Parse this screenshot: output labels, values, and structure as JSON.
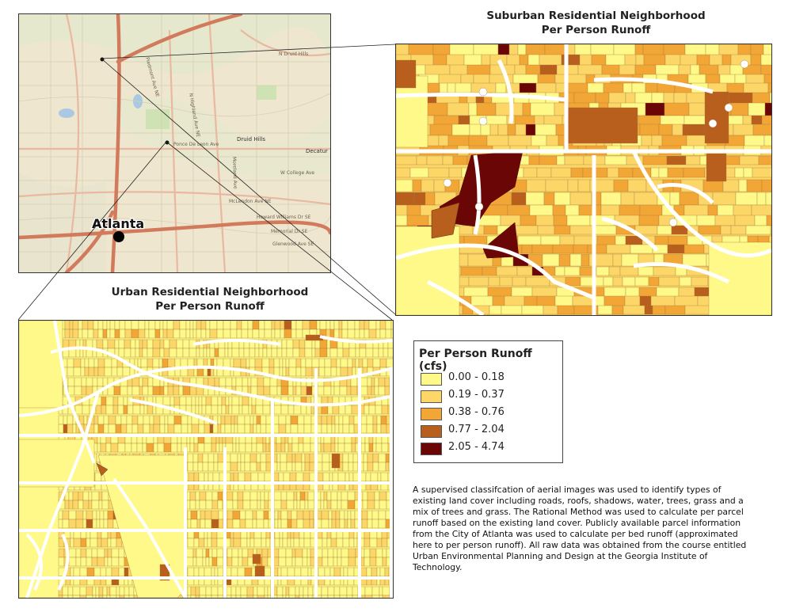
{
  "suburban_title": "Suburban Residential Neighborhood",
  "suburban_subtitle": "Per Person Runoff",
  "urban_title": "Urban Residential Neighborhood",
  "urban_subtitle": "Per Person Runoff",
  "city_label": "Atlanta",
  "map_labels": {
    "druid_hills": "Druid Hills",
    "decatur": "Decatur",
    "n_druid_hills": "N Druid Hills",
    "mclendon": "McLendon Ave NE",
    "williams_dr": "Howard Williams Dr SE",
    "glenwood": "Glenwood Ave SE",
    "memorial": "Memorial Dr SE",
    "ponce": "Ponce De Leon Ave",
    "w_college": "W College Ave",
    "n_highland": "N Highland Ave NE",
    "piedmont": "Piedmont Ave NE",
    "moreland": "Moreland Ave"
  },
  "legend": {
    "title": "Per Person Runoff (cfs)",
    "classes": [
      {
        "label": "0.00 - 0.18",
        "color": "#fff98a"
      },
      {
        "label": "0.19 - 0.37",
        "color": "#fdd668"
      },
      {
        "label": "0.38 - 0.76",
        "color": "#f2a636"
      },
      {
        "label": "0.77 - 2.04",
        "color": "#b85f1e"
      },
      {
        "label": "2.05 - 4.74",
        "color": "#6b0606"
      }
    ]
  },
  "description": "A supervised classifcation of aerial images was used to identify types of existing land cover including roads, roofs, shadows, water, trees, grass and a mix of trees and grass. The Rational Method was used to calculate per parcel runoff based on the existing land cover. Publicly available parcel information from the City of Atlanta was used to calculate per bed runoff (approximated here to per person runoff). All raw data was obtained from the course entitled Urban Environmental Planning and Design at the Georgia Institute of Technology."
}
